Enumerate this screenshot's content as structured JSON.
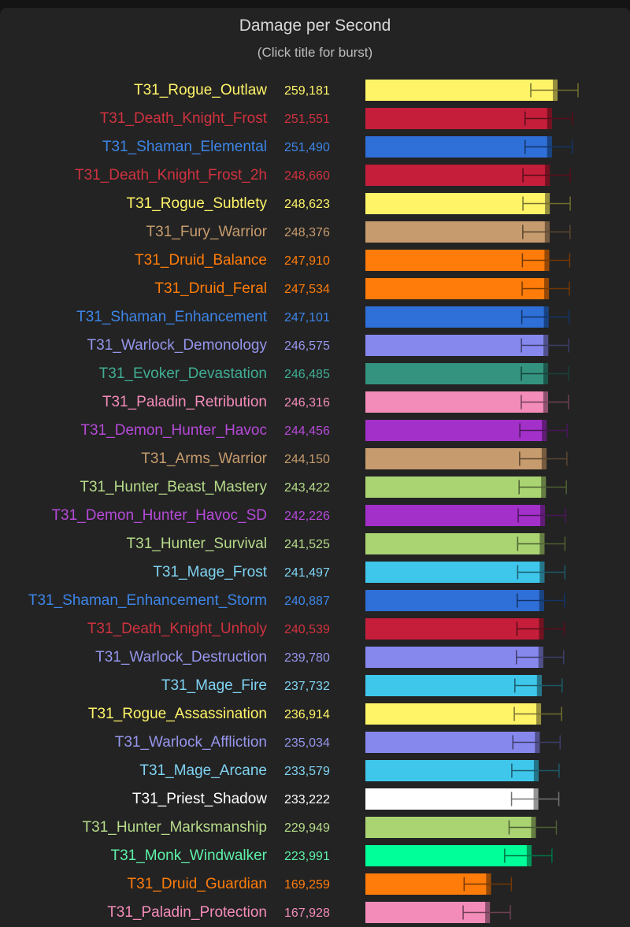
{
  "chart_data": {
    "type": "bar",
    "orientation": "horizontal",
    "title": "Damage per Second",
    "subtitle": "(Click title for burst)",
    "xlim": [
      0,
      259181
    ],
    "rows": [
      {
        "name": "T31_Rogue_Outlaw",
        "value": 259181,
        "label": "259,181",
        "color": "#fff468"
      },
      {
        "name": "T31_Death_Knight_Frost",
        "value": 251551,
        "label": "251,551",
        "color": "#c41e3a"
      },
      {
        "name": "T31_Shaman_Elemental",
        "value": 251490,
        "label": "251,490",
        "color": "#2a74e0"
      },
      {
        "name": "T31_Death_Knight_Frost_2h",
        "value": 248660,
        "label": "248,660",
        "color": "#c41e3a"
      },
      {
        "name": "T31_Rogue_Subtlety",
        "value": 248623,
        "label": "248,623",
        "color": "#fff468"
      },
      {
        "name": "T31_Fury_Warrior",
        "value": 248376,
        "label": "248,376",
        "color": "#c69b6d"
      },
      {
        "name": "T31_Druid_Balance",
        "value": 247910,
        "label": "247,910",
        "color": "#ff7c0a"
      },
      {
        "name": "T31_Druid_Feral",
        "value": 247534,
        "label": "247,534",
        "color": "#ff7c0a"
      },
      {
        "name": "T31_Shaman_Enhancement",
        "value": 247101,
        "label": "247,101",
        "color": "#2a74e0"
      },
      {
        "name": "T31_Warlock_Demonology",
        "value": 246575,
        "label": "246,575",
        "color": "#8788ee"
      },
      {
        "name": "T31_Evoker_Devastation",
        "value": 246485,
        "label": "246,485",
        "color": "#33937f"
      },
      {
        "name": "T31_Paladin_Retribution",
        "value": 246316,
        "label": "246,316",
        "color": "#f48cba"
      },
      {
        "name": "T31_Demon_Hunter_Havoc",
        "value": 244456,
        "label": "244,456",
        "color": "#a330c9"
      },
      {
        "name": "T31_Arms_Warrior",
        "value": 244150,
        "label": "244,150",
        "color": "#c69b6d"
      },
      {
        "name": "T31_Hunter_Beast_Mastery",
        "value": 243422,
        "label": "243,422",
        "color": "#aad372"
      },
      {
        "name": "T31_Demon_Hunter_Havoc_SD",
        "value": 242226,
        "label": "242,226",
        "color": "#a330c9"
      },
      {
        "name": "T31_Hunter_Survival",
        "value": 241525,
        "label": "241,525",
        "color": "#aad372"
      },
      {
        "name": "T31_Mage_Frost",
        "value": 241497,
        "label": "241,497",
        "color": "#3fc7eb"
      },
      {
        "name": "T31_Shaman_Enhancement_Storm",
        "value": 240887,
        "label": "240,887",
        "color": "#2a74e0"
      },
      {
        "name": "T31_Death_Knight_Unholy",
        "value": 240539,
        "label": "240,539",
        "color": "#c41e3a"
      },
      {
        "name": "T31_Warlock_Destruction",
        "value": 239780,
        "label": "239,780",
        "color": "#8788ee"
      },
      {
        "name": "T31_Mage_Fire",
        "value": 237732,
        "label": "237,732",
        "color": "#3fc7eb"
      },
      {
        "name": "T31_Rogue_Assassination",
        "value": 236914,
        "label": "236,914",
        "color": "#fff468"
      },
      {
        "name": "T31_Warlock_Affliction",
        "value": 235034,
        "label": "235,034",
        "color": "#8788ee"
      },
      {
        "name": "T31_Mage_Arcane",
        "value": 233579,
        "label": "233,579",
        "color": "#3fc7eb"
      },
      {
        "name": "T31_Priest_Shadow",
        "value": 233222,
        "label": "233,222",
        "color": "#ffffff"
      },
      {
        "name": "T31_Hunter_Marksmanship",
        "value": 229949,
        "label": "229,949",
        "color": "#aad372"
      },
      {
        "name": "T31_Monk_Windwalker",
        "value": 223991,
        "label": "223,991",
        "color": "#00ff98"
      },
      {
        "name": "T31_Druid_Guardian",
        "value": 169259,
        "label": "169,259",
        "color": "#ff7c0a"
      },
      {
        "name": "T31_Paladin_Protection",
        "value": 167928,
        "label": "167,928",
        "color": "#f48cba"
      }
    ]
  }
}
